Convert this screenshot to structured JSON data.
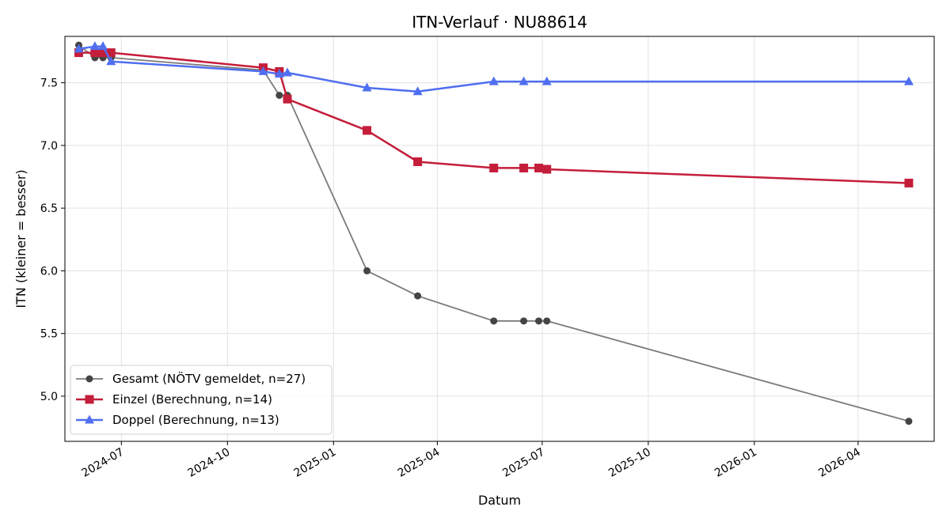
{
  "chart_data": {
    "type": "line",
    "title": "ITN-Verlauf · NU88614",
    "xlabel": "Datum",
    "ylabel": "ITN  (kleiner = besser)",
    "x_ticks": [
      "2024-07",
      "2024-10",
      "2025-01",
      "2025-04",
      "2025-07",
      "2025-10",
      "2026-01",
      "2026-04"
    ],
    "y_ticks": [
      "5.0",
      "5.5",
      "6.0",
      "6.5",
      "7.0",
      "7.5"
    ],
    "xlim": [
      "2024-05-13",
      "2026-06-06"
    ],
    "ylim": [
      4.64,
      7.87
    ],
    "grid": true,
    "legend_position": "lower-left",
    "series": [
      {
        "name": "Gesamt (NÖTV gemeldet, n=27)",
        "color": "#444444",
        "marker": "circle",
        "x": [
          "2024-05-25",
          "2024-06-08",
          "2024-06-15",
          "2024-06-22",
          "2024-11-01",
          "2024-11-15",
          "2024-11-22",
          "2025-01-30",
          "2025-03-15",
          "2025-05-20",
          "2025-06-15",
          "2025-06-28",
          "2025-07-05",
          "2026-05-15"
        ],
        "y": [
          7.8,
          7.7,
          7.7,
          7.7,
          7.6,
          7.4,
          7.4,
          6.0,
          5.8,
          5.6,
          5.6,
          5.6,
          5.6,
          4.8
        ]
      },
      {
        "name": "Einzel (Berechnung, n=14)",
        "color": "#c41e3a",
        "marker": "square",
        "x": [
          "2024-05-25",
          "2024-06-08",
          "2024-06-15",
          "2024-06-22",
          "2024-11-01",
          "2024-11-15",
          "2024-11-22",
          "2025-01-30",
          "2025-03-15",
          "2025-05-20",
          "2025-06-15",
          "2025-06-28",
          "2025-07-05",
          "2026-05-15"
        ],
        "y": [
          7.74,
          7.74,
          7.74,
          7.74,
          7.62,
          7.59,
          7.37,
          7.12,
          6.87,
          6.82,
          6.82,
          6.82,
          6.81,
          6.7
        ]
      },
      {
        "name": "Doppel (Berechnung, n=13)",
        "color": "#4f6ef0",
        "marker": "triangle",
        "x": [
          "2024-05-25",
          "2024-06-08",
          "2024-06-15",
          "2024-06-22",
          "2024-11-01",
          "2024-11-15",
          "2024-11-22",
          "2025-01-30",
          "2025-03-15",
          "2025-05-20",
          "2025-06-15",
          "2025-07-05",
          "2026-05-15"
        ],
        "y": [
          7.77,
          7.79,
          7.79,
          7.67,
          7.59,
          7.57,
          7.58,
          7.46,
          7.43,
          7.51,
          7.51,
          7.51,
          7.51
        ]
      }
    ]
  }
}
